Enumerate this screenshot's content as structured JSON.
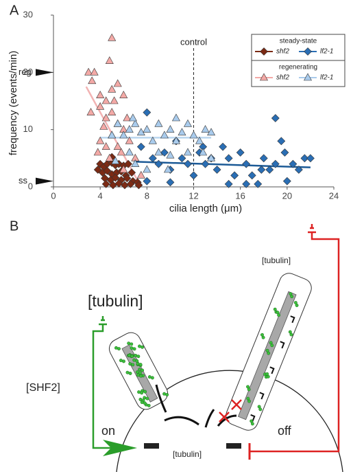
{
  "panel_labels": [
    "A",
    "B"
  ],
  "chart_data": {
    "type": "scatter",
    "xlabel": "cilia length (μm)",
    "ylabel": "frequency (events/min)",
    "xlim": [
      0,
      24
    ],
    "ylim": [
      0,
      30
    ],
    "xticks": [
      0,
      4,
      8,
      12,
      16,
      20,
      24
    ],
    "yticks": [
      0,
      10,
      20,
      30
    ],
    "legend_titles": [
      "steady-state",
      "regenerating"
    ],
    "series": [
      {
        "name": "shf2",
        "color": "#7b2a14",
        "marker": "diamond",
        "x": [
          4,
          4.3,
          4.6,
          5,
          5.3,
          5.6,
          6,
          6.4,
          4.2,
          4.6,
          5,
          5.4,
          5.8,
          6.2,
          6.7,
          4.4,
          4.9,
          5.3,
          5.8,
          6.3,
          6.8,
          7.2,
          4.5,
          5.1,
          5.6,
          6.1,
          6.6,
          7.3,
          5,
          3.8
        ],
        "y": [
          4,
          3.5,
          4,
          4.2,
          3.8,
          4,
          3.7,
          4,
          2.5,
          2.8,
          2.2,
          2.5,
          2.7,
          2,
          2.5,
          1.5,
          1.2,
          1.6,
          1.2,
          1.5,
          1,
          0.8,
          0.5,
          0.3,
          0.6,
          0.3,
          0.5,
          0.3,
          5.2,
          3
        ]
      },
      {
        "name": "lf2-1",
        "color": "#2a6eb4",
        "marker": "diamond",
        "x": [
          8,
          7.5,
          8.5,
          9,
          9.5,
          10,
          10.5,
          11,
          11.5,
          12,
          12.5,
          13,
          13.5,
          14,
          14.5,
          15,
          15.5,
          16,
          16.5,
          17,
          17.5,
          18,
          18.5,
          19,
          19.5,
          19.8,
          20,
          20.5,
          21,
          21.5,
          22,
          16.5,
          15,
          10,
          8,
          12.8,
          17.8,
          19
        ],
        "y": [
          13,
          7,
          5,
          4,
          6,
          3,
          8,
          5,
          4,
          2,
          6,
          4,
          5,
          3,
          7,
          5,
          2,
          6,
          4,
          2,
          0.5,
          5,
          3,
          12,
          8,
          6,
          1,
          4,
          3,
          5,
          5,
          0.5,
          0.5,
          0.8,
          1,
          7,
          3,
          4
        ]
      },
      {
        "name": "shf2",
        "color": "#f3a9a6",
        "marker": "triangle",
        "x": [
          3,
          3.5,
          3.3,
          4,
          4.5,
          5,
          4.8,
          5.5,
          3.2,
          4,
          4.5,
          5,
          5.2,
          6,
          4.3,
          5.5,
          6,
          4,
          4.5,
          5,
          5.5,
          6.5,
          3.8,
          4.8,
          5.8,
          7,
          6,
          7.5,
          5,
          6.3
        ],
        "y": [
          20,
          20,
          18.5,
          16,
          15,
          26,
          22,
          18,
          13,
          14,
          12,
          13,
          15,
          16,
          10.5,
          11,
          10,
          8,
          7,
          9,
          7,
          8,
          6,
          5,
          6,
          5,
          3,
          2,
          17,
          12
        ]
      },
      {
        "name": "lf2-1",
        "color": "#a9cbec",
        "marker": "triangle",
        "x": [
          5,
          5.5,
          6,
          6.5,
          7,
          7.5,
          8,
          8.5,
          9,
          9.5,
          10,
          10.5,
          11,
          11.5,
          12,
          12.5,
          13,
          13.5,
          9,
          10,
          6.5,
          7,
          8,
          10.5,
          11.5,
          12.8,
          9.8,
          6.8,
          5.3,
          13.5
        ],
        "y": [
          9,
          11,
          9,
          10,
          11,
          9.5,
          10,
          8,
          11,
          9,
          10,
          8,
          9.5,
          11,
          9,
          8,
          10,
          9.5,
          6,
          5.5,
          6,
          4,
          3,
          12,
          6,
          6,
          3,
          12,
          4.5,
          5
        ]
      }
    ],
    "trend_lines": [
      {
        "color": "#f2b3b3",
        "x": [
          2.8,
          7.5
        ],
        "y": [
          17.5,
          0
        ]
      },
      {
        "color": "#b9d5ee",
        "x": [
          4,
          13.5
        ],
        "y": [
          8.6,
          8.6
        ]
      },
      {
        "color": "#1c5a96",
        "x": [
          7,
          22
        ],
        "y": [
          4.4,
          3.4
        ]
      }
    ],
    "markers": [
      {
        "label": "reg",
        "value": 20
      },
      {
        "label": "ss",
        "value": 1
      }
    ],
    "control": {
      "label": "control",
      "x": 12
    }
  },
  "diagram": {
    "tubulin_large": "[tubulin]",
    "tubulin_right": "[tubulin]",
    "tubulin_bottom": "[tubulin]",
    "shf2": "[SHF2]",
    "on": "on",
    "off": "off"
  }
}
